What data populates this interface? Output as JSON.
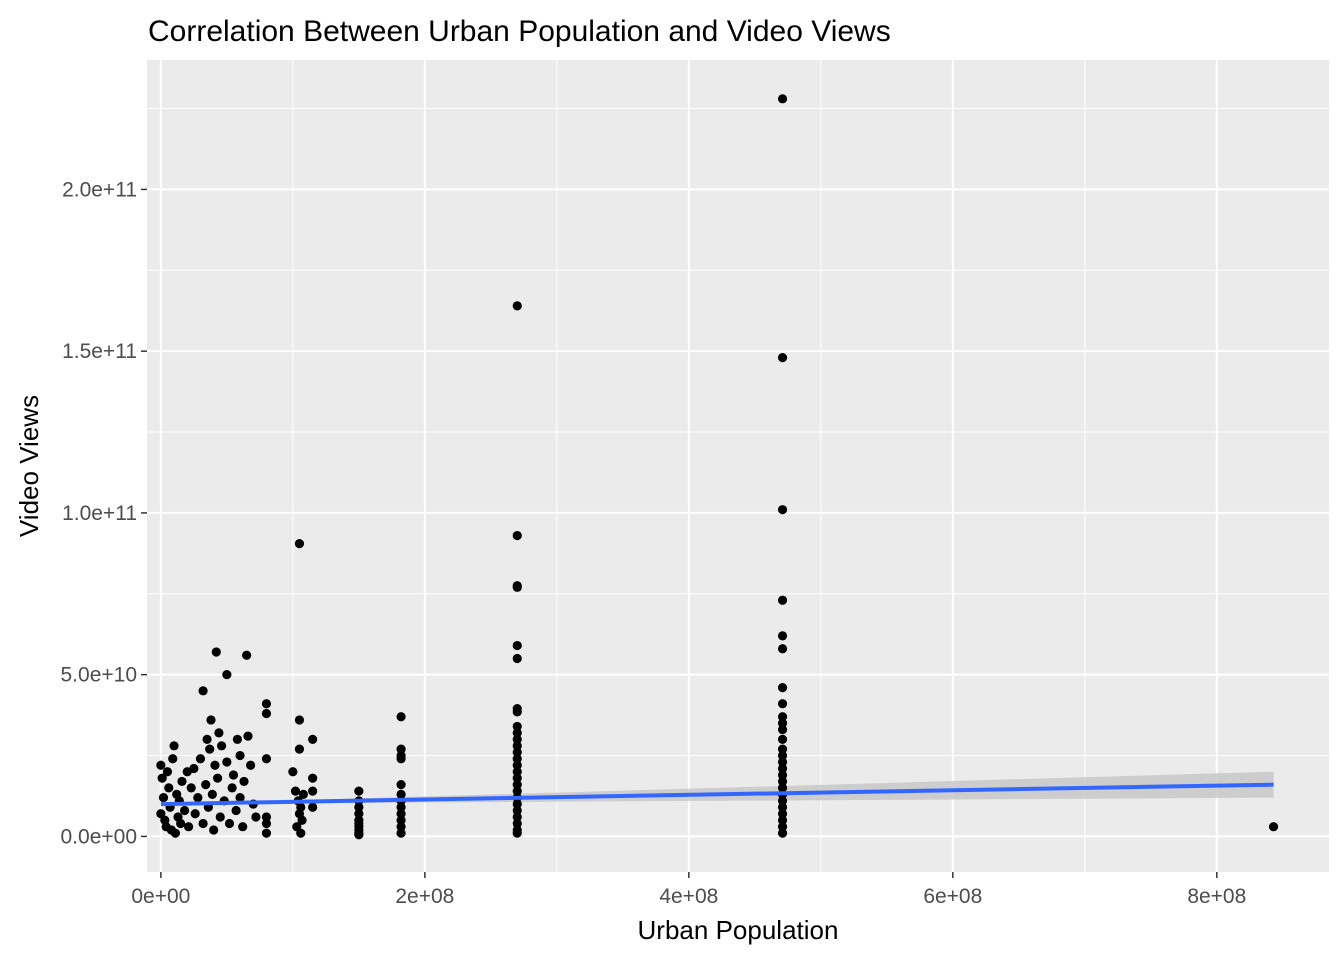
{
  "chart_data": {
    "type": "scatter",
    "title": "Correlation Between Urban Population and Video Views",
    "xlabel": "Urban Population",
    "ylabel": "Video Views",
    "xlim": [
      -10500000,
      885000000
    ],
    "ylim": [
      -11000000000,
      240000000000
    ],
    "x_ticks": [
      {
        "value": 0,
        "label": "0e+00"
      },
      {
        "value": 200000000,
        "label": "2e+08"
      },
      {
        "value": 400000000,
        "label": "4e+08"
      },
      {
        "value": 600000000,
        "label": "6e+08"
      },
      {
        "value": 800000000,
        "label": "8e+08"
      }
    ],
    "y_ticks": [
      {
        "value": 0,
        "label": "0.0e+00"
      },
      {
        "value": 50000000000,
        "label": "5.0e+10"
      },
      {
        "value": 100000000000,
        "label": "1.0e+11"
      },
      {
        "value": 150000000000,
        "label": "1.5e+11"
      },
      {
        "value": 200000000000,
        "label": "2.0e+11"
      }
    ],
    "grid": true,
    "colors": {
      "panel": "#ebebeb",
      "grid": "#ffffff",
      "point": "#000000",
      "trend": "#3366ff",
      "ribbon": "#c8c8c8"
    },
    "series": [
      {
        "points": [
          [
            0,
            22000000000.0
          ],
          [
            0,
            7000000000.0
          ],
          [
            1000000.0,
            18000000000.0
          ],
          [
            2000000.0,
            12000000000.0
          ],
          [
            3000000.0,
            5000000000.0
          ],
          [
            4000000.0,
            3000000000.0
          ],
          [
            5000000.0,
            20000000000.0
          ],
          [
            6000000.0,
            15000000000.0
          ],
          [
            7000000.0,
            9000000000.0
          ],
          [
            8000000.0,
            2000000000.0
          ],
          [
            9000000.0,
            24000000000.0
          ],
          [
            10000000.0,
            28000000000.0
          ],
          [
            11000000.0,
            1000000000.0
          ],
          [
            12000000.0,
            13000000000.0
          ],
          [
            13000000.0,
            6000000000.0
          ],
          [
            14000000.0,
            11000000000.0
          ],
          [
            15000000.0,
            4000000000.0
          ],
          [
            16000000.0,
            17000000000.0
          ],
          [
            18000000.0,
            8000000000.0
          ],
          [
            20000000.0,
            20000000000.0
          ],
          [
            21000000.0,
            3000000000.0
          ],
          [
            23000000.0,
            15000000000.0
          ],
          [
            25000000.0,
            21000000000.0
          ],
          [
            26000000.0,
            7000000000.0
          ],
          [
            28000000.0,
            12000000000.0
          ],
          [
            30000000.0,
            24000000000.0
          ],
          [
            32000000.0,
            4000000000.0
          ],
          [
            32000000.0,
            45000000000.0
          ],
          [
            34000000.0,
            16000000000.0
          ],
          [
            35000000.0,
            30000000000.0
          ],
          [
            36000000.0,
            9000000000.0
          ],
          [
            37000000.0,
            27000000000.0
          ],
          [
            38000000.0,
            36000000000.0
          ],
          [
            39000000.0,
            13000000000.0
          ],
          [
            40000000.0,
            2000000000.0
          ],
          [
            41000000.0,
            22000000000.0
          ],
          [
            42000000.0,
            57000000000.0
          ],
          [
            43000000.0,
            18000000000.0
          ],
          [
            44000000.0,
            32000000000.0
          ],
          [
            45000000.0,
            6000000000.0
          ],
          [
            46000000.0,
            28000000000.0
          ],
          [
            48000000.0,
            11000000000.0
          ],
          [
            50000000.0,
            23000000000.0
          ],
          [
            50000000.0,
            50000000000.0
          ],
          [
            52000000.0,
            4000000000.0
          ],
          [
            54000000.0,
            15000000000.0
          ],
          [
            55000000.0,
            19000000000.0
          ],
          [
            57000000.0,
            8000000000.0
          ],
          [
            58000000.0,
            30000000000.0
          ],
          [
            60000000.0,
            25000000000.0
          ],
          [
            60000000.0,
            12000000000.0
          ],
          [
            62000000.0,
            3000000000.0
          ],
          [
            63000000.0,
            17000000000.0
          ],
          [
            65000000.0,
            56000000000.0
          ],
          [
            66000000.0,
            31000000000.0
          ],
          [
            68000000.0,
            22000000000.0
          ],
          [
            70000000.0,
            10000000000.0
          ],
          [
            72000000.0,
            6000000000.0
          ],
          [
            80000000.0,
            41000000000.0
          ],
          [
            80000000.0,
            38000000000.0
          ],
          [
            80000000.0,
            24000000000.0
          ],
          [
            80000000.0,
            6000000000.0
          ],
          [
            80000000.0,
            4000000000.0
          ],
          [
            80000000.0,
            1000000000.0
          ],
          [
            105000000.0,
            90500000000.0
          ],
          [
            105000000.0,
            36000000000.0
          ],
          [
            105000000.0,
            27000000000.0
          ],
          [
            100000000.0,
            20000000000.0
          ],
          [
            102000000.0,
            14000000000.0
          ],
          [
            104000000.0,
            11000000000.0
          ],
          [
            106000000.0,
            9000000000.0
          ],
          [
            105000000.0,
            7000000000.0
          ],
          [
            107000000.0,
            5000000000.0
          ],
          [
            103000000.0,
            3000000000.0
          ],
          [
            108000000.0,
            13000000000.0
          ],
          [
            106000000.0,
            1000000000.0
          ],
          [
            115000000.0,
            30000000000.0
          ],
          [
            115000000.0,
            18000000000.0
          ],
          [
            115000000.0,
            14000000000.0
          ],
          [
            115000000.0,
            9000000000.0
          ],
          [
            150000000.0,
            14000000000.0
          ],
          [
            150000000.0,
            11000000000.0
          ],
          [
            150000000.0,
            9000000000.0
          ],
          [
            150000000.0,
            7000000000.0
          ],
          [
            150000000.0,
            5000000000.0
          ],
          [
            150000000.0,
            4000000000.0
          ],
          [
            150000000.0,
            3000000000.0
          ],
          [
            150000000.0,
            2000000000.0
          ],
          [
            150000000.0,
            1000000000.0
          ],
          [
            150000000.0,
            500000000.0
          ],
          [
            182000000.0,
            37000000000.0
          ],
          [
            182000000.0,
            27000000000.0
          ],
          [
            182000000.0,
            25000000000.0
          ],
          [
            182000000.0,
            24000000000.0
          ],
          [
            182000000.0,
            16000000000.0
          ],
          [
            182000000.0,
            13000000000.0
          ],
          [
            182000000.0,
            11000000000.0
          ],
          [
            182000000.0,
            9000000000.0
          ],
          [
            182000000.0,
            7000000000.0
          ],
          [
            182000000.0,
            5000000000.0
          ],
          [
            182000000.0,
            3000000000.0
          ],
          [
            182000000.0,
            1000000000.0
          ],
          [
            270000000.0,
            164000000000.0
          ],
          [
            270000000.0,
            93000000000.0
          ],
          [
            270000000.0,
            77500000000.0
          ],
          [
            270000000.0,
            77000000000.0
          ],
          [
            270000000.0,
            59000000000.0
          ],
          [
            270000000.0,
            55000000000.0
          ],
          [
            270000000.0,
            39500000000.0
          ],
          [
            270000000.0,
            38500000000.0
          ],
          [
            270000000.0,
            34000000000.0
          ],
          [
            270000000.0,
            32000000000.0
          ],
          [
            270000000.0,
            30000000000.0
          ],
          [
            270000000.0,
            28000000000.0
          ],
          [
            270000000.0,
            26000000000.0
          ],
          [
            270000000.0,
            24000000000.0
          ],
          [
            270000000.0,
            22000000000.0
          ],
          [
            270000000.0,
            20000000000.0
          ],
          [
            270000000.0,
            18000000000.0
          ],
          [
            270000000.0,
            16000000000.0
          ],
          [
            270000000.0,
            14000000000.0
          ],
          [
            270000000.0,
            12000000000.0
          ],
          [
            270000000.0,
            10000000000.0
          ],
          [
            270000000.0,
            8000000000.0
          ],
          [
            270000000.0,
            6000000000.0
          ],
          [
            270000000.0,
            4000000000.0
          ],
          [
            270000000.0,
            2000000000.0
          ],
          [
            270000000.0,
            1000000000.0
          ],
          [
            471000000.0,
            228000000000.0
          ],
          [
            471000000.0,
            148000000000.0
          ],
          [
            471000000.0,
            101000000000.0
          ],
          [
            471000000.0,
            73000000000.0
          ],
          [
            471000000.0,
            62000000000.0
          ],
          [
            471000000.0,
            58000000000.0
          ],
          [
            471000000.0,
            46000000000.0
          ],
          [
            471000000.0,
            41000000000.0
          ],
          [
            471000000.0,
            37000000000.0
          ],
          [
            471000000.0,
            35000000000.0
          ],
          [
            471000000.0,
            33000000000.0
          ],
          [
            471000000.0,
            30000000000.0
          ],
          [
            471000000.0,
            27000000000.0
          ],
          [
            471000000.0,
            25000000000.0
          ],
          [
            471000000.0,
            23000000000.0
          ],
          [
            471000000.0,
            21000000000.0
          ],
          [
            471000000.0,
            19000000000.0
          ],
          [
            471000000.0,
            17000000000.0
          ],
          [
            471000000.0,
            15000000000.0
          ],
          [
            471000000.0,
            13000000000.0
          ],
          [
            471000000.0,
            11000000000.0
          ],
          [
            471000000.0,
            9000000000.0
          ],
          [
            471000000.0,
            7000000000.0
          ],
          [
            471000000.0,
            5000000000.0
          ],
          [
            471000000.0,
            3000000000.0
          ],
          [
            471000000.0,
            1000000000.0
          ],
          [
            843000000.0,
            3000000000.0
          ]
        ]
      }
    ],
    "trend": {
      "method": "linear",
      "from": [
        0,
        10000000000.0
      ],
      "to": [
        843000000.0,
        16000000000.0
      ],
      "ribbon_from": [
        10000000000.0,
        10000000000.0
      ],
      "ribbon_to": [
        12000000000.0,
        20000000000.0
      ]
    }
  }
}
